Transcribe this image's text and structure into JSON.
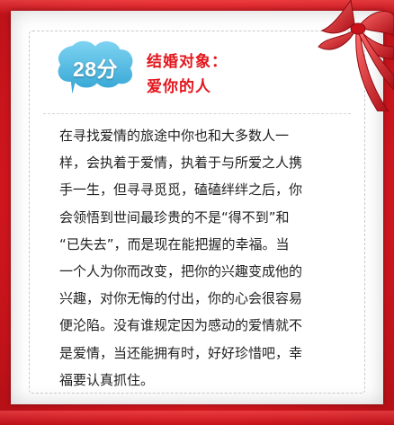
{
  "badge": {
    "score": "28分"
  },
  "header": {
    "title_line1": "结婚对象：",
    "title_line2": "爱你的人"
  },
  "body": {
    "lines": [
      "在寻找爱情的旅途中你也和大多数人一",
      "样，会执着于爱情，执着于与所爱之人携",
      "手一生，但寻寻觅觅，磕磕绊绊之后，你",
      "会领悟到世间最珍贵的不是“得不到”和",
      "“已失去”，而是现在能把握的幸福。当",
      "一个人为你而改变，把你的兴趣变成他的",
      "兴趣，对你无悔的付出，你的心会很容易",
      "便沦陷。没有谁规定因为感动的爱情就不",
      "是爱情，当还能拥有时，好好珍惜吧，幸",
      "福要认真抓住。"
    ]
  },
  "colors": {
    "frame_red": "#e31b23",
    "title_red": "#e2161c",
    "bubble_blue": "#3fb3df",
    "text_dark": "#1f1f1f"
  },
  "icons": {
    "badge_shape": "speech-bubble-icon",
    "decoration": "ribbon-bow-icon"
  }
}
